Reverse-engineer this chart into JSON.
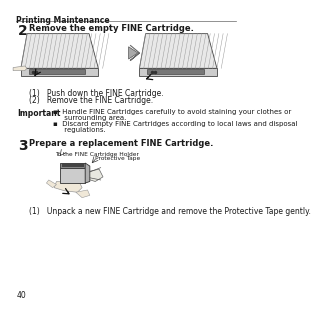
{
  "header_text": "Printing Maintenance",
  "step2_num": "2",
  "step2_title": "Remove the empty FINE Cartridge.",
  "step2_sub1": "(1)   Push down the FINE Cartridge.",
  "step2_sub2": "(2)   Remove the FINE Cartridge.",
  "important_label": "Important",
  "imp_bullet1a": "▪  Handle FINE Cartridges carefully to avoid staining your clothes or",
  "imp_bullet1b": "     surrounding area.",
  "imp_bullet2a": "▪  Discard empty FINE Cartridges according to local laws and disposal",
  "imp_bullet2b": "     regulations.",
  "step3_num": "3",
  "step3_title": "Prepare a replacement FINE Cartridge.",
  "label_holder": "To the FINE Cartridge Holder",
  "label_tape": "Protective Tape",
  "step3_sub1": "(1)   Unpack a new FINE Cartridge and remove the Protective Tape gently.",
  "page_num": "40",
  "tc": "#1a1a1a",
  "gray1": "#888888",
  "gray2": "#555555",
  "gray3": "#cccccc",
  "gray4": "#aaaaaa",
  "gray5": "#dddddd"
}
